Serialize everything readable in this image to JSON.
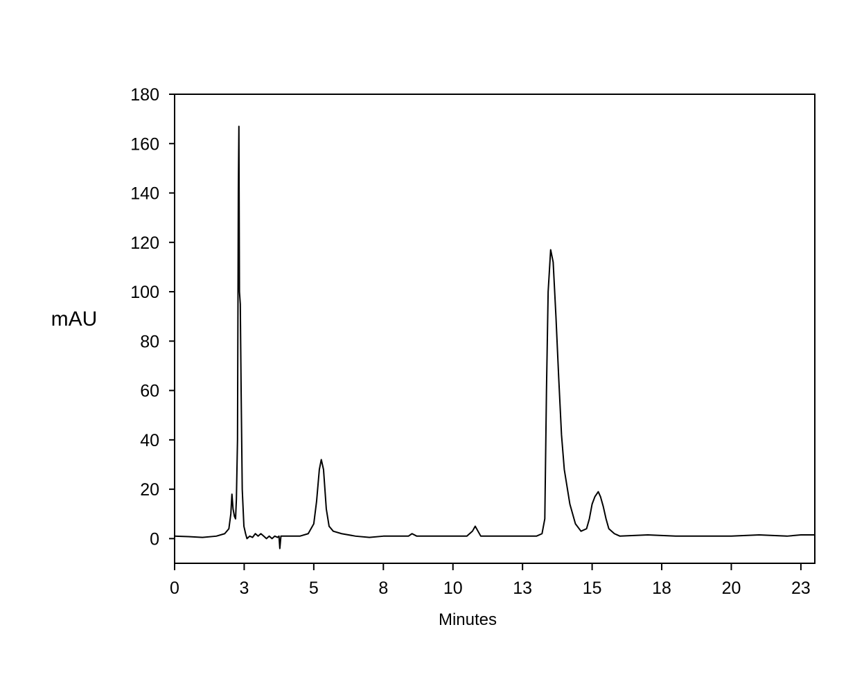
{
  "chart_data": {
    "type": "line",
    "x_label": "Minutes",
    "y_label": "mAU",
    "xlim": [
      0,
      23
    ],
    "ylim": [
      -10,
      180
    ],
    "xticks": [
      0,
      {
        "value": 2.5,
        "label": "3"
      },
      5,
      {
        "value": 7.5,
        "label": "8"
      },
      10,
      {
        "value": 12.5,
        "label": "13"
      },
      15,
      {
        "value": 17.5,
        "label": "18"
      },
      20,
      {
        "value": 22.5,
        "label": "23"
      }
    ],
    "yticks": [
      0,
      20,
      40,
      60,
      80,
      100,
      120,
      140,
      160,
      180
    ],
    "color": "#000000",
    "x": [
      0,
      0.5,
      1,
      1.5,
      1.8,
      1.95,
      2.02,
      2.06,
      2.1,
      2.15,
      2.19,
      2.22,
      2.26,
      2.29,
      2.31,
      2.33,
      2.36,
      2.39,
      2.43,
      2.49,
      2.55,
      2.6,
      2.7,
      2.8,
      2.9,
      3.0,
      3.1,
      3.2,
      3.3,
      3.4,
      3.5,
      3.6,
      3.7,
      3.75,
      3.78,
      3.82,
      4.0,
      4.5,
      4.8,
      5.0,
      5.1,
      5.2,
      5.27,
      5.35,
      5.45,
      5.55,
      5.7,
      6.0,
      6.5,
      7.0,
      7.5,
      8.0,
      8.4,
      8.53,
      8.7,
      9.5,
      10.5,
      10.7,
      10.8,
      10.9,
      11.0,
      12.0,
      13.0,
      13.2,
      13.3,
      13.36,
      13.42,
      13.51,
      13.6,
      13.7,
      13.8,
      13.9,
      14.0,
      14.2,
      14.4,
      14.6,
      14.8,
      14.9,
      15.0,
      15.1,
      15.22,
      15.3,
      15.4,
      15.5,
      15.6,
      15.8,
      16,
      17,
      18,
      19,
      20,
      21,
      22,
      22.5,
      23
    ],
    "values": [
      1,
      0.8,
      0.5,
      1,
      2,
      4,
      10,
      18,
      12,
      9,
      8,
      16,
      40,
      140,
      167,
      100,
      95,
      60,
      20,
      5,
      2,
      0,
      1,
      0.5,
      2,
      1,
      2,
      1,
      0,
      1,
      0,
      1,
      0.5,
      1,
      -4,
      1,
      1,
      1,
      2,
      6,
      15,
      28,
      32,
      28,
      12,
      5,
      3,
      2,
      1,
      0.5,
      1,
      1,
      1,
      2,
      1,
      1,
      1,
      3,
      5,
      3,
      1,
      1,
      1,
      2,
      8,
      60,
      100,
      117,
      112,
      90,
      65,
      42,
      28,
      14,
      6,
      3,
      4,
      8,
      14,
      17,
      19,
      17,
      13,
      8,
      4,
      2,
      1,
      1.5,
      1,
      1,
      1,
      1.5,
      1,
      1.5,
      1.5
    ]
  }
}
